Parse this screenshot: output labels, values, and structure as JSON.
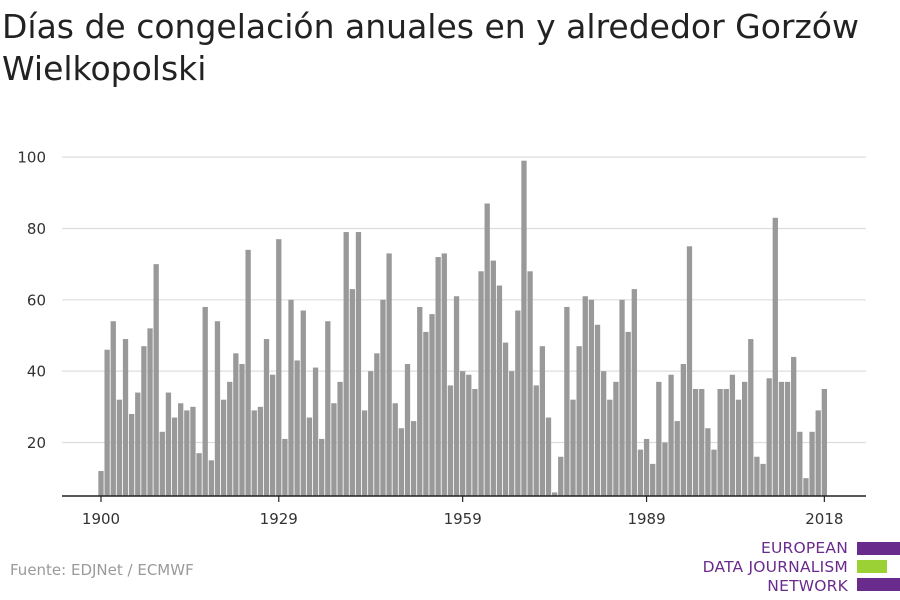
{
  "title": "Días de congelación anuales en y alrededor Gorzów Wielkopolski",
  "source": "Fuente: EDJNet / ECMWF",
  "logo": {
    "line1": "EUROPEAN",
    "line2": "DATA JOURNALISM",
    "line3": "NETWORK"
  },
  "colors": {
    "bar": "#999999",
    "grid": "#dddddd",
    "axis": "#222222",
    "logo_purple": "#6a2c8c",
    "logo_green": "#9bd134"
  },
  "chart_data": {
    "type": "bar",
    "title": "Días de congelación anuales en y alrededor Gorzów Wielkopolski",
    "xlabel": "",
    "ylabel": "",
    "ylim": [
      5,
      102
    ],
    "grid": true,
    "yticks": [
      20,
      40,
      60,
      80,
      100
    ],
    "xticks": [
      1900,
      1929,
      1959,
      1989,
      2018
    ],
    "x": [
      1900,
      1901,
      1902,
      1903,
      1904,
      1905,
      1906,
      1907,
      1908,
      1909,
      1910,
      1911,
      1912,
      1913,
      1914,
      1915,
      1916,
      1917,
      1918,
      1919,
      1920,
      1921,
      1922,
      1923,
      1924,
      1925,
      1926,
      1927,
      1928,
      1929,
      1930,
      1931,
      1932,
      1933,
      1934,
      1935,
      1936,
      1937,
      1938,
      1939,
      1940,
      1941,
      1942,
      1943,
      1944,
      1945,
      1946,
      1947,
      1948,
      1949,
      1950,
      1951,
      1952,
      1953,
      1954,
      1955,
      1956,
      1957,
      1958,
      1959,
      1960,
      1961,
      1962,
      1963,
      1964,
      1965,
      1966,
      1967,
      1968,
      1969,
      1970,
      1971,
      1972,
      1973,
      1974,
      1975,
      1976,
      1977,
      1978,
      1979,
      1980,
      1981,
      1982,
      1983,
      1984,
      1985,
      1986,
      1987,
      1988,
      1989,
      1990,
      1991,
      1992,
      1993,
      1994,
      1995,
      1996,
      1997,
      1998,
      1999,
      2000,
      2001,
      2002,
      2003,
      2004,
      2005,
      2006,
      2007,
      2008,
      2009,
      2010,
      2011,
      2012,
      2013,
      2014,
      2015,
      2016,
      2017,
      2018
    ],
    "values": [
      12,
      46,
      54,
      32,
      49,
      28,
      34,
      47,
      52,
      70,
      23,
      34,
      27,
      31,
      29,
      30,
      17,
      58,
      15,
      54,
      32,
      37,
      45,
      42,
      74,
      29,
      30,
      49,
      39,
      77,
      21,
      60,
      43,
      57,
      27,
      41,
      21,
      54,
      31,
      37,
      79,
      63,
      79,
      29,
      40,
      45,
      60,
      73,
      31,
      24,
      42,
      26,
      58,
      51,
      56,
      72,
      73,
      36,
      61,
      40,
      39,
      35,
      68,
      87,
      71,
      64,
      48,
      40,
      57,
      99,
      68,
      36,
      47,
      27,
      6,
      16,
      58,
      32,
      47,
      61,
      60,
      53,
      40,
      32,
      37,
      60,
      51,
      63,
      18,
      21,
      14,
      37,
      20,
      39,
      26,
      42,
      75,
      35,
      35,
      24,
      18,
      35,
      35,
      39,
      32,
      37,
      49,
      16,
      14,
      38,
      83,
      37,
      37,
      44,
      23,
      10,
      23,
      29,
      35
    ]
  }
}
